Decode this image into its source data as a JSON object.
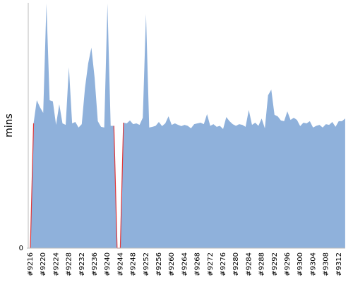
{
  "chart_data": {
    "type": "area",
    "y_label": "mins",
    "color": "#8fb1db",
    "zero_color": "#e0383a",
    "ylim": [
      0,
      100
    ],
    "yticks": [
      0
    ],
    "categories": [
      "#9216",
      null,
      null,
      null,
      "#9220",
      null,
      null,
      null,
      "#9224",
      null,
      null,
      null,
      "#9228",
      null,
      null,
      null,
      "#9232",
      null,
      null,
      null,
      "#9236",
      null,
      null,
      null,
      "#9240",
      null,
      null,
      null,
      "#9244",
      null,
      null,
      null,
      "#9248",
      null,
      null,
      null,
      "#9252",
      null,
      null,
      null,
      "#9256",
      null,
      null,
      null,
      "#9260",
      null,
      null,
      null,
      "#9264",
      null,
      null,
      null,
      "#9268",
      null,
      null,
      null,
      "#9272",
      null,
      null,
      null,
      "#9276",
      null,
      null,
      null,
      "#9280",
      null,
      null,
      null,
      "#9284",
      null,
      null,
      null,
      "#9288",
      null,
      null,
      null,
      "#9292",
      null,
      null,
      null,
      "#9296",
      null,
      null,
      null,
      "#9300",
      null,
      null,
      null,
      "#9304",
      null,
      null,
      null,
      "#9308",
      null,
      null,
      null,
      "#9312",
      null,
      null
    ],
    "values": [
      0,
      51,
      60.5,
      57.6,
      55.3,
      100,
      60.5,
      60,
      50.4,
      58.8,
      51,
      50.4,
      74,
      51,
      51.6,
      49.3,
      50.7,
      65.4,
      75.5,
      82,
      69.7,
      51.9,
      49.6,
      49.3,
      100,
      50,
      50,
      0,
      0,
      51.3,
      51,
      52.2,
      50.7,
      51,
      50.4,
      53.3,
      95.7,
      49.3,
      49.6,
      50,
      51.6,
      49.9,
      51,
      53.9,
      50.4,
      51,
      50.4,
      49.9,
      50.4,
      50,
      49,
      50.7,
      51,
      51.3,
      50.7,
      54.8,
      50,
      50.7,
      49.6,
      50,
      48.7,
      53.6,
      51.9,
      50.7,
      50,
      50.7,
      50.4,
      49.6,
      56.5,
      50.4,
      51.3,
      50,
      53,
      49,
      62.5,
      64.8,
      54.5,
      53.9,
      52.2,
      51.9,
      55.9,
      52.4,
      53.3,
      52.4,
      49.9,
      51.3,
      51,
      51.9,
      49.3,
      50,
      50.4,
      49.3,
      50.7,
      50.4,
      51.6,
      49.6,
      51.9,
      51.9,
      53
    ]
  }
}
